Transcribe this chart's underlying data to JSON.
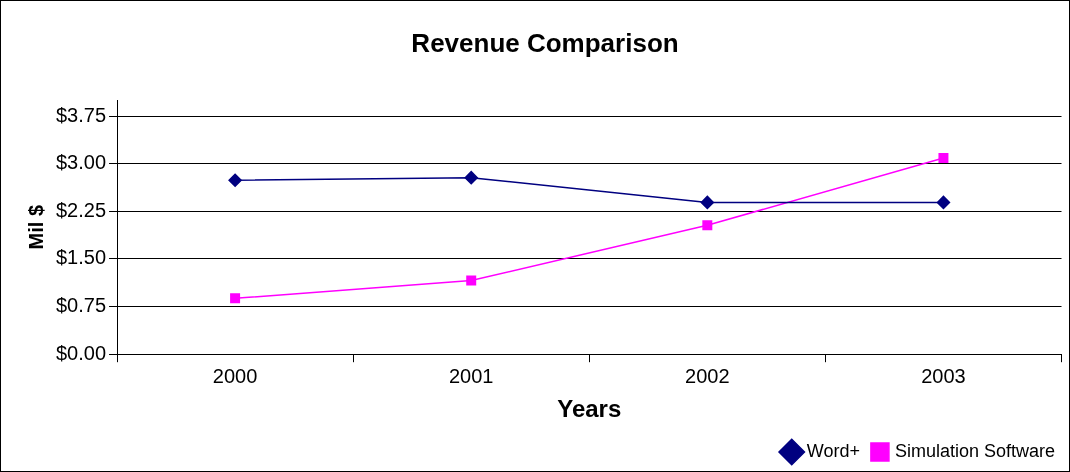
{
  "chart_data": {
    "type": "line",
    "title": "Revenue Comparison",
    "xlabel": "Years",
    "ylabel": "Mil $",
    "categories": [
      "2000",
      "2001",
      "2002",
      "2003"
    ],
    "series": [
      {
        "name": "Word+",
        "color": "#000080",
        "marker": "diamond",
        "values": [
          2.74,
          2.78,
          2.39,
          2.39
        ]
      },
      {
        "name": "Simulation Software",
        "color": "#ff00ff",
        "marker": "square",
        "values": [
          0.88,
          1.16,
          2.03,
          3.09
        ]
      }
    ],
    "ylim": [
      0,
      4
    ],
    "yticks": [
      {
        "value": 0,
        "label": "$0.00"
      },
      {
        "value": 0.75,
        "label": "$0.75"
      },
      {
        "value": 1.5,
        "label": "$1.50"
      },
      {
        "value": 2.25,
        "label": "$2.25"
      },
      {
        "value": 3,
        "label": "$3.00"
      },
      {
        "value": 3.75,
        "label": "$3.75"
      }
    ],
    "grid": "y",
    "legend": "bottom right",
    "line_style": "solid"
  }
}
